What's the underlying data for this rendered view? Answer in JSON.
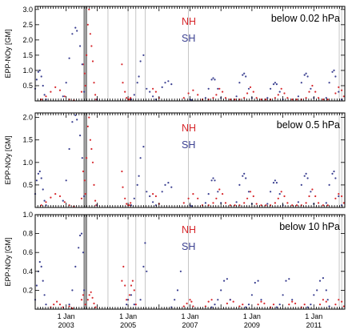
{
  "chart_data": [
    {
      "type": "scatter",
      "panel_label": "below 0.02 hPa",
      "ylabel": "EPP-NOy [GM]",
      "ylim": [
        0,
        3.1
      ],
      "yticks": [
        0.5,
        1.0,
        1.5,
        2.0,
        2.5,
        3.0
      ],
      "ytick_labels": [
        "0.5",
        "1.0",
        "1.5",
        "2.0",
        "2.5",
        "3.0"
      ],
      "xlim": [
        2002.0,
        2012.0
      ],
      "series": [
        {
          "name": "NH",
          "color": "#d7272c",
          "x": [
            2002.2,
            2002.35,
            2002.5,
            2002.65,
            2002.8,
            2002.95,
            2003.1,
            2003.25,
            2003.5,
            2003.55,
            2003.6,
            2003.62,
            2003.66,
            2003.7,
            2003.74,
            2003.78,
            2003.82,
            2003.86,
            2003.9,
            2003.94,
            2003.97,
            2004.8,
            2004.83,
            2004.9,
            2004.95,
            2005.0,
            2005.05,
            2005.08,
            2005.8,
            2005.9,
            2006.0,
            2006.8,
            2006.95,
            2007.1,
            2007.25,
            2007.4,
            2007.6,
            2007.75,
            2007.85,
            2007.95,
            2008.05,
            2008.15,
            2008.3,
            2008.45,
            2008.6,
            2008.75,
            2008.85,
            2008.95,
            2009.05,
            2009.15,
            2009.3,
            2009.45,
            2009.6,
            2009.75,
            2009.85,
            2009.95,
            2010.05,
            2010.15,
            2010.3,
            2010.45,
            2010.6,
            2010.75,
            2010.85,
            2010.95,
            2011.05,
            2011.15,
            2011.3,
            2011.45,
            2011.7,
            2011.8,
            2011.9,
            2011.97
          ],
          "y": [
            0.05,
            0.15,
            0.3,
            0.45,
            0.35,
            0.15,
            0.05,
            0.02,
            0.3,
            1.2,
            0.9,
            0.5,
            1.5,
            2.5,
            3.0,
            2.2,
            1.8,
            1.3,
            0.6,
            0.2,
            0.05,
            1.2,
            0.6,
            0.3,
            0.1,
            0.05,
            0.05,
            0.1,
            0.4,
            0.3,
            0.1,
            0.1,
            0.25,
            0.35,
            0.2,
            0.05,
            0.05,
            0.1,
            0.2,
            0.4,
            0.3,
            0.1,
            0.05,
            0.05,
            0.05,
            0.1,
            0.25,
            0.45,
            0.3,
            0.1,
            0.05,
            0.05,
            0.05,
            0.1,
            0.2,
            0.4,
            0.25,
            0.1,
            0.05,
            0.05,
            0.05,
            0.1,
            0.3,
            0.5,
            0.3,
            0.1,
            0.05,
            0.05,
            0.25,
            0.45,
            0.35,
            0.15
          ]
        },
        {
          "name": "SH",
          "color": "#3a3f90",
          "x": [
            2002.0,
            2002.05,
            2002.1,
            2002.15,
            2002.2,
            2002.25,
            2002.3,
            2002.35,
            2002.9,
            2003.0,
            2003.1,
            2003.2,
            2003.3,
            2003.35,
            2003.45,
            2003.52,
            2003.58,
            2004.0,
            2005.1,
            2005.2,
            2005.3,
            2005.35,
            2005.4,
            2005.5,
            2005.6,
            2005.7,
            2005.8,
            2005.9,
            2006.1,
            2006.2,
            2006.3,
            2006.4,
            2007.0,
            2007.05,
            2007.5,
            2007.6,
            2007.7,
            2007.75,
            2007.8,
            2007.9,
            2008.0,
            2008.5,
            2008.6,
            2008.7,
            2008.75,
            2008.8,
            2008.9,
            2009.0,
            2009.5,
            2009.6,
            2009.7,
            2009.75,
            2009.8,
            2009.9,
            2010.0,
            2010.5,
            2010.6,
            2010.7,
            2010.75,
            2010.8,
            2010.9,
            2011.0,
            2011.4,
            2011.5,
            2011.6,
            2011.65,
            2011.7,
            2011.8,
            2011.9
          ],
          "y": [
            0.4,
            0.7,
            0.95,
            1.0,
            0.8,
            0.5,
            0.2,
            0.05,
            0.15,
            0.6,
            1.4,
            2.2,
            2.4,
            2.3,
            1.8,
            1.2,
            0.3,
            0.05,
            0.05,
            0.2,
            0.6,
            0.8,
            1.3,
            1.5,
            0.4,
            0.3,
            0.15,
            0.05,
            0.45,
            0.6,
            0.65,
            0.55,
            0.05,
            0.03,
            0.1,
            0.4,
            0.7,
            0.75,
            0.7,
            0.4,
            0.1,
            0.15,
            0.6,
            0.85,
            0.9,
            0.8,
            0.4,
            0.1,
            0.1,
            0.4,
            0.55,
            0.6,
            0.55,
            0.3,
            0.05,
            0.15,
            0.6,
            0.85,
            0.9,
            0.8,
            0.4,
            0.1,
            0.1,
            0.6,
            0.95,
            1.0,
            0.8,
            0.3,
            0.05
          ]
        }
      ]
    },
    {
      "type": "scatter",
      "panel_label": "below 0.5 hPa",
      "ylabel": "EPP-NOy [GM]",
      "ylim": [
        0,
        2.1
      ],
      "yticks": [
        0.5,
        1.0,
        1.5,
        2.0
      ],
      "ytick_labels": [
        "0.5",
        "1.0",
        "1.5",
        "2.0"
      ],
      "xlim": [
        2002.0,
        2012.0
      ],
      "series": [
        {
          "name": "NH",
          "color": "#d7272c",
          "x": [
            2002.2,
            2002.35,
            2002.5,
            2002.65,
            2002.8,
            2002.95,
            2003.1,
            2003.25,
            2003.5,
            2003.55,
            2003.6,
            2003.62,
            2003.66,
            2003.7,
            2003.74,
            2003.78,
            2003.82,
            2003.86,
            2003.9,
            2003.94,
            2003.97,
            2004.8,
            2004.83,
            2004.9,
            2004.95,
            2005.0,
            2005.05,
            2005.08,
            2005.8,
            2005.9,
            2006.0,
            2006.8,
            2006.95,
            2007.1,
            2007.25,
            2007.4,
            2007.6,
            2007.75,
            2007.85,
            2007.95,
            2008.05,
            2008.15,
            2008.3,
            2008.45,
            2008.6,
            2008.75,
            2008.85,
            2008.95,
            2009.05,
            2009.15,
            2009.3,
            2009.45,
            2009.6,
            2009.75,
            2009.85,
            2009.95,
            2010.05,
            2010.15,
            2010.3,
            2010.45,
            2010.6,
            2010.75,
            2010.85,
            2010.95,
            2011.05,
            2011.15,
            2011.3,
            2011.45,
            2011.7,
            2011.8,
            2011.9,
            2011.97
          ],
          "y": [
            0.05,
            0.12,
            0.22,
            0.3,
            0.25,
            0.12,
            0.05,
            0.02,
            0.2,
            0.8,
            0.6,
            0.3,
            1.1,
            1.8,
            2.0,
            1.5,
            1.3,
            1.0,
            0.5,
            0.15,
            0.05,
            0.8,
            0.45,
            0.2,
            0.08,
            0.05,
            0.05,
            0.1,
            0.3,
            0.25,
            0.08,
            0.1,
            0.2,
            0.3,
            0.2,
            0.05,
            0.05,
            0.1,
            0.2,
            0.4,
            0.3,
            0.1,
            0.05,
            0.05,
            0.05,
            0.1,
            0.2,
            0.35,
            0.25,
            0.08,
            0.05,
            0.05,
            0.05,
            0.1,
            0.2,
            0.35,
            0.25,
            0.1,
            0.05,
            0.05,
            0.05,
            0.1,
            0.25,
            0.4,
            0.25,
            0.1,
            0.05,
            0.05,
            0.2,
            0.3,
            0.25,
            0.1
          ]
        },
        {
          "name": "SH",
          "color": "#3a3f90",
          "x": [
            2002.0,
            2002.05,
            2002.1,
            2002.15,
            2002.2,
            2002.25,
            2002.3,
            2002.35,
            2002.9,
            2003.0,
            2003.1,
            2003.2,
            2003.3,
            2003.35,
            2003.45,
            2003.52,
            2003.58,
            2004.0,
            2005.1,
            2005.2,
            2005.3,
            2005.35,
            2005.4,
            2005.5,
            2005.6,
            2005.7,
            2005.8,
            2005.9,
            2006.1,
            2006.2,
            2006.3,
            2006.4,
            2007.0,
            2007.05,
            2007.5,
            2007.6,
            2007.7,
            2007.75,
            2007.8,
            2007.9,
            2008.0,
            2008.5,
            2008.6,
            2008.7,
            2008.75,
            2008.8,
            2008.9,
            2009.0,
            2009.5,
            2009.6,
            2009.7,
            2009.75,
            2009.8,
            2009.9,
            2010.0,
            2010.5,
            2010.6,
            2010.7,
            2010.75,
            2010.8,
            2010.9,
            2011.0,
            2011.4,
            2011.5,
            2011.6,
            2011.65,
            2011.7,
            2011.8,
            2011.9
          ],
          "y": [
            0.3,
            0.6,
            0.75,
            0.8,
            0.65,
            0.4,
            0.15,
            0.05,
            0.15,
            0.6,
            1.3,
            1.9,
            2.05,
            1.95,
            1.6,
            1.1,
            0.25,
            0.05,
            0.05,
            0.2,
            0.5,
            0.7,
            1.1,
            1.35,
            0.35,
            0.25,
            0.12,
            0.05,
            0.35,
            0.5,
            0.55,
            0.45,
            0.05,
            0.03,
            0.1,
            0.3,
            0.6,
            0.65,
            0.6,
            0.35,
            0.1,
            0.12,
            0.5,
            0.7,
            0.75,
            0.65,
            0.35,
            0.08,
            0.08,
            0.35,
            0.55,
            0.6,
            0.55,
            0.3,
            0.05,
            0.12,
            0.5,
            0.7,
            0.75,
            0.65,
            0.35,
            0.08,
            0.1,
            0.5,
            0.75,
            0.8,
            0.65,
            0.25,
            0.05
          ]
        }
      ]
    },
    {
      "type": "scatter",
      "panel_label": "below 10 hPa",
      "ylabel": "EPP-NOy [GM]",
      "ylim": [
        0,
        1.0
      ],
      "yticks": [
        0.2,
        0.4,
        0.6,
        0.8,
        1.0
      ],
      "ytick_labels": [
        "0.2",
        "0.4",
        "0.6",
        "0.8",
        "1.0"
      ],
      "xlim": [
        2002.0,
        2012.0
      ],
      "xticks": [
        2003.0,
        2005.0,
        2007.0,
        2009.0,
        2011.0
      ],
      "xtick_labels": [
        [
          "1 Jan",
          "2003"
        ],
        [
          "1 Jan",
          "2005"
        ],
        [
          "1 Jan",
          "2007"
        ],
        [
          "1 Jan",
          "2009"
        ],
        [
          "1 Jan",
          "2011"
        ]
      ],
      "series": [
        {
          "name": "NH",
          "color": "#d7272c",
          "x": [
            2002.5,
            2002.6,
            2002.7,
            2002.8,
            2002.9,
            2003.1,
            2003.2,
            2003.5,
            2003.55,
            2003.62,
            2003.7,
            2003.75,
            2003.8,
            2003.85,
            2003.9,
            2003.95,
            2004.8,
            2004.85,
            2004.9,
            2004.95,
            2005.05,
            2005.1,
            2005.15,
            2005.2,
            2005.25,
            2006.8,
            2006.9,
            2007.0,
            2007.05,
            2007.1,
            2007.5,
            2007.6,
            2007.7,
            2008.2,
            2008.3,
            2008.4,
            2008.6,
            2008.7,
            2009.2,
            2009.3,
            2009.4,
            2009.6,
            2009.7,
            2010.2,
            2010.3,
            2010.4,
            2010.6,
            2010.7,
            2011.2,
            2011.3,
            2011.4,
            2011.7,
            2011.8,
            2011.9,
            2011.97
          ],
          "y": [
            0.02,
            0.05,
            0.08,
            0.05,
            0.02,
            0.03,
            0.01,
            0.1,
            0.15,
            0.05,
            0.1,
            0.15,
            0.18,
            0.12,
            0.06,
            0.02,
            0.3,
            0.45,
            0.25,
            0.1,
            0.15,
            0.25,
            0.3,
            0.2,
            0.05,
            0.03,
            0.06,
            0.1,
            0.08,
            0.03,
            0.03,
            0.08,
            0.1,
            0.06,
            0.1,
            0.08,
            0.03,
            0.05,
            0.05,
            0.08,
            0.06,
            0.02,
            0.05,
            0.05,
            0.08,
            0.06,
            0.02,
            0.05,
            0.05,
            0.1,
            0.08,
            0.05,
            0.1,
            0.08,
            0.03
          ]
        },
        {
          "name": "SH",
          "color": "#3a3f90",
          "x": [
            2002.0,
            2002.05,
            2002.1,
            2002.15,
            2002.2,
            2002.25,
            2002.3,
            2002.35,
            2003.1,
            2003.2,
            2003.3,
            2003.4,
            2003.45,
            2003.5,
            2003.55,
            2003.58,
            2004.95,
            2005.0,
            2005.1,
            2005.2,
            2005.4,
            2005.5,
            2005.55,
            2005.6,
            2006.4,
            2006.5,
            2006.6,
            2006.7,
            2007.7,
            2007.8,
            2007.9,
            2008.0,
            2008.1,
            2008.2,
            2008.3,
            2008.8,
            2008.9,
            2009.0,
            2009.1,
            2009.2,
            2009.3,
            2009.8,
            2009.9,
            2010.0,
            2010.1,
            2010.2,
            2010.3,
            2010.8,
            2010.9,
            2011.0,
            2011.1,
            2011.2,
            2011.3,
            2011.4,
            2011.45,
            2011.5
          ],
          "y": [
            0.1,
            0.25,
            0.4,
            0.5,
            0.45,
            0.3,
            0.15,
            0.05,
            0.05,
            0.2,
            0.45,
            0.65,
            0.78,
            0.8,
            0.6,
            0.2,
            0.05,
            0.1,
            0.15,
            0.05,
            0.1,
            0.45,
            0.7,
            0.4,
            0.02,
            0.1,
            0.2,
            0.4,
            0.02,
            0.05,
            0.1,
            0.2,
            0.3,
            0.32,
            0.1,
            0.02,
            0.05,
            0.15,
            0.28,
            0.3,
            0.1,
            0.02,
            0.05,
            0.15,
            0.3,
            0.32,
            0.1,
            0.02,
            0.05,
            0.15,
            0.2,
            0.3,
            0.33,
            0.2,
            0.1,
            0.03
          ]
        }
      ]
    }
  ],
  "vertical_lines": [
    2003.62,
    2004.35,
    2005.0,
    2005.25,
    2005.55,
    2006.95,
    2011.82,
    2011.9
  ],
  "shaded_band": [
    2003.56,
    2003.68
  ],
  "legend": {
    "nh_label": "NH",
    "sh_label": "SH"
  },
  "colors": {
    "nh": "#d7272c",
    "sh": "#3a3f90",
    "vline": "#b8b8b8",
    "band": "#8c8c8c"
  }
}
